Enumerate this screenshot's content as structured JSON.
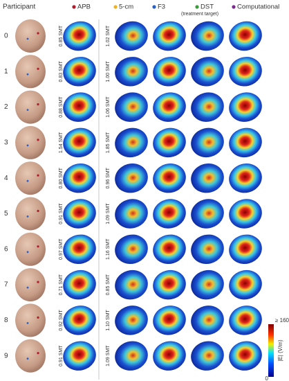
{
  "header": {
    "participant": "Participant",
    "legend": [
      {
        "label": "APB",
        "color": "#b01c2e"
      },
      {
        "label": "5-cm",
        "color": "#f0b020"
      },
      {
        "label": "F3",
        "color": "#2a5fc8"
      },
      {
        "label": "DST",
        "color": "#3a9a3a"
      },
      {
        "label": "Computational",
        "color": "#7b2a8e"
      }
    ],
    "dst_note": "(treatment target)"
  },
  "rows": [
    {
      "participant": "0",
      "smt": [
        "0.85 SMT",
        "1.02 SMT"
      ]
    },
    {
      "participant": "1",
      "smt": [
        "0.83 SMT",
        "1.00 SMT"
      ]
    },
    {
      "participant": "2",
      "smt": [
        "0.88 SMT",
        "1.06 SMT"
      ]
    },
    {
      "participant": "3",
      "smt": [
        "1.54 SMT",
        "1.85 SMT"
      ]
    },
    {
      "participant": "4",
      "smt": [
        "0.80 SMT",
        "0.96 SMT"
      ]
    },
    {
      "participant": "5",
      "smt": [
        "0.91 SMT",
        "1.09 SMT"
      ]
    },
    {
      "participant": "6",
      "smt": [
        "0.97 SMT",
        "1.16 SMT"
      ]
    },
    {
      "participant": "7",
      "smt": [
        "0.71 SMT",
        "0.85 SMT"
      ]
    },
    {
      "participant": "8",
      "smt": [
        "0.92 SMT",
        "1.10 SMT"
      ]
    },
    {
      "participant": "9",
      "smt": [
        "0.91 SMT",
        "1.09 SMT"
      ]
    }
  ],
  "colorbar": {
    "max_label": "≥ 160",
    "min_label": "0",
    "title": "|E| (V/m)"
  }
}
